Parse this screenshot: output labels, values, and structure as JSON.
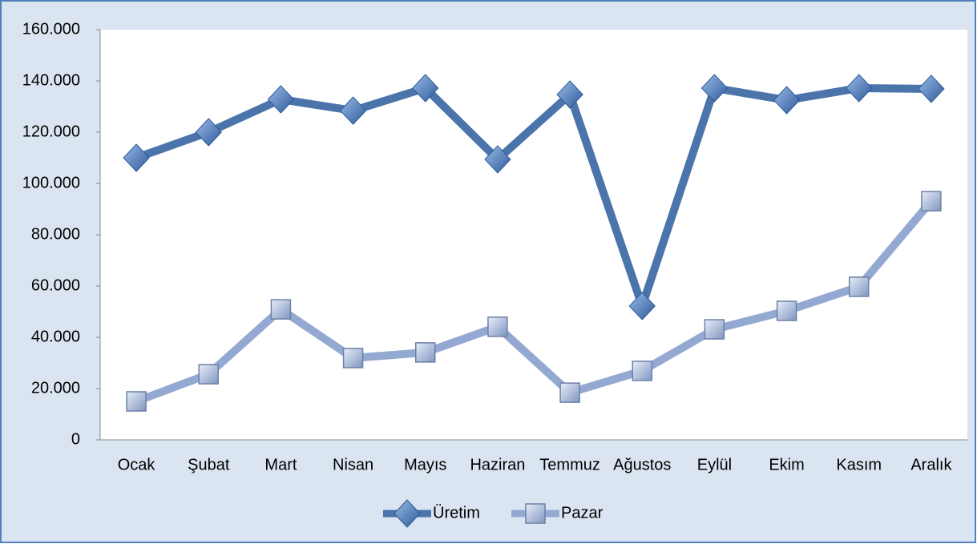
{
  "chart_data": {
    "type": "line",
    "categories": [
      "Ocak",
      "Şubat",
      "Mart",
      "Nisan",
      "Mayıs",
      "Haziran",
      "Temmuz",
      "Ağustos",
      "Eylül",
      "Ekim",
      "Kasım",
      "Aralık"
    ],
    "series": [
      {
        "name": "Üretim",
        "color": "#4a74aa",
        "marker": "diamond",
        "values": [
          110000,
          120000,
          132800,
          128400,
          137200,
          109400,
          134700,
          52200,
          137200,
          132500,
          137200,
          136900
        ]
      },
      {
        "name": "Pazar",
        "color": "#94a9d2",
        "marker": "square",
        "values": [
          15000,
          25600,
          50900,
          31900,
          34100,
          44100,
          18400,
          26900,
          43100,
          50300,
          59700,
          93100
        ]
      }
    ],
    "ylim": [
      0,
      160000
    ],
    "yticks": [
      0,
      {
        "value": 20000,
        "label": "20.000"
      },
      {
        "value": 40000,
        "label": "40.000"
      },
      {
        "value": 60000,
        "label": "60.000"
      },
      {
        "value": 80000,
        "label": "80.000"
      },
      {
        "value": 100000,
        "label": "100.000"
      },
      {
        "value": 120000,
        "label": "120.000"
      },
      {
        "value": 140000,
        "label": "140.000"
      },
      {
        "value": 160000,
        "label": "160.000"
      }
    ],
    "grid": false,
    "legend": "bottom"
  }
}
